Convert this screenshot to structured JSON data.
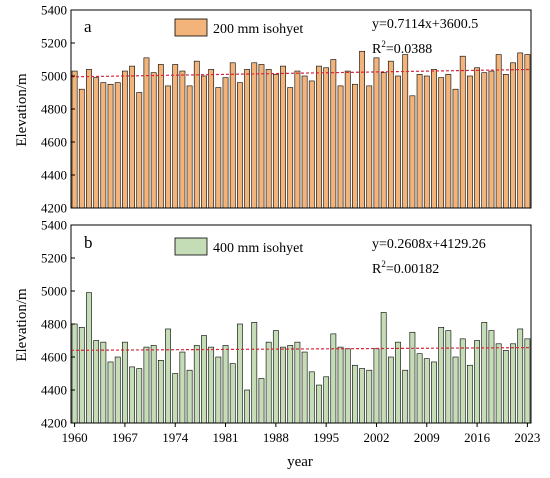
{
  "chart_data": [
    {
      "type": "bar",
      "panel_label": "a",
      "legend": "200 mm isohyet",
      "equation": "y=0.7114x+3600.5",
      "r2_prefix": "R",
      "r2_sup": "2",
      "r2_value": "=0.0388",
      "ylabel": "Elevation/m",
      "ylim": [
        4200,
        5400
      ],
      "yticks": [
        4200,
        4400,
        4600,
        4800,
        5000,
        5200,
        5400
      ],
      "bar_color": "#f2b47a",
      "trend_color": "#d7263d",
      "trend": {
        "slope": 0.7114,
        "intercept": 3600.5
      },
      "x": [
        1960,
        1961,
        1962,
        1963,
        1964,
        1965,
        1966,
        1967,
        1968,
        1969,
        1970,
        1971,
        1972,
        1973,
        1974,
        1975,
        1976,
        1977,
        1978,
        1979,
        1980,
        1981,
        1982,
        1983,
        1984,
        1985,
        1986,
        1987,
        1988,
        1989,
        1990,
        1991,
        1992,
        1993,
        1994,
        1995,
        1996,
        1997,
        1998,
        1999,
        2000,
        2001,
        2002,
        2003,
        2004,
        2005,
        2006,
        2007,
        2008,
        2009,
        2010,
        2011,
        2012,
        2013,
        2014,
        2015,
        2016,
        2017,
        2018,
        2019,
        2020,
        2021,
        2022,
        2023
      ],
      "values": [
        5030,
        4920,
        5040,
        4990,
        4960,
        4950,
        4960,
        5030,
        5060,
        4900,
        5110,
        5020,
        5070,
        4940,
        5070,
        5030,
        4940,
        5090,
        5000,
        5040,
        4930,
        4990,
        5080,
        4960,
        5040,
        5080,
        5070,
        5040,
        5010,
        5060,
        4930,
        5030,
        5000,
        4970,
        5060,
        5050,
        5100,
        4940,
        5030,
        4950,
        5150,
        4940,
        5110,
        5020,
        5090,
        5000,
        5130,
        4880,
        5010,
        5000,
        5040,
        4990,
        5010,
        4920,
        5120,
        5000,
        5050,
        5020,
        5030,
        5130,
        5010,
        5080,
        5140,
        5130
      ]
    },
    {
      "type": "bar",
      "panel_label": "b",
      "legend": "400 mm isohyet",
      "equation": "y=0.2608x+4129.26",
      "r2_prefix": "R",
      "r2_sup": "2",
      "r2_value": "=0.00182",
      "ylabel": "Elevation/m",
      "xlabel": "year",
      "ylim": [
        4200,
        5400
      ],
      "yticks": [
        4200,
        4400,
        4600,
        4800,
        5000,
        5200,
        5400
      ],
      "xticks": [
        1960,
        1967,
        1974,
        1981,
        1988,
        1995,
        2002,
        2009,
        2016,
        2023
      ],
      "bar_color": "#c5ddb6",
      "trend_color": "#d7263d",
      "trend": {
        "slope": 0.2608,
        "intercept": 4129.26
      },
      "x": [
        1960,
        1961,
        1962,
        1963,
        1964,
        1965,
        1966,
        1967,
        1968,
        1969,
        1970,
        1971,
        1972,
        1973,
        1974,
        1975,
        1976,
        1977,
        1978,
        1979,
        1980,
        1981,
        1982,
        1983,
        1984,
        1985,
        1986,
        1987,
        1988,
        1989,
        1990,
        1991,
        1992,
        1993,
        1994,
        1995,
        1996,
        1997,
        1998,
        1999,
        2000,
        2001,
        2002,
        2003,
        2004,
        2005,
        2006,
        2007,
        2008,
        2009,
        2010,
        2011,
        2012,
        2013,
        2014,
        2015,
        2016,
        2017,
        2018,
        2019,
        2020,
        2021,
        2022,
        2023
      ],
      "values": [
        4800,
        4780,
        4990,
        4700,
        4690,
        4570,
        4600,
        4690,
        4540,
        4530,
        4660,
        4670,
        4580,
        4770,
        4500,
        4630,
        4520,
        4670,
        4730,
        4660,
        4600,
        4670,
        4560,
        4800,
        4400,
        4810,
        4470,
        4690,
        4760,
        4660,
        4670,
        4690,
        4630,
        4510,
        4430,
        4480,
        4740,
        4660,
        4650,
        4550,
        4530,
        4520,
        4650,
        4870,
        4600,
        4690,
        4520,
        4750,
        4620,
        4590,
        4570,
        4780,
        4760,
        4600,
        4710,
        4550,
        4700,
        4810,
        4760,
        4680,
        4640,
        4680,
        4770,
        4710
      ]
    }
  ]
}
